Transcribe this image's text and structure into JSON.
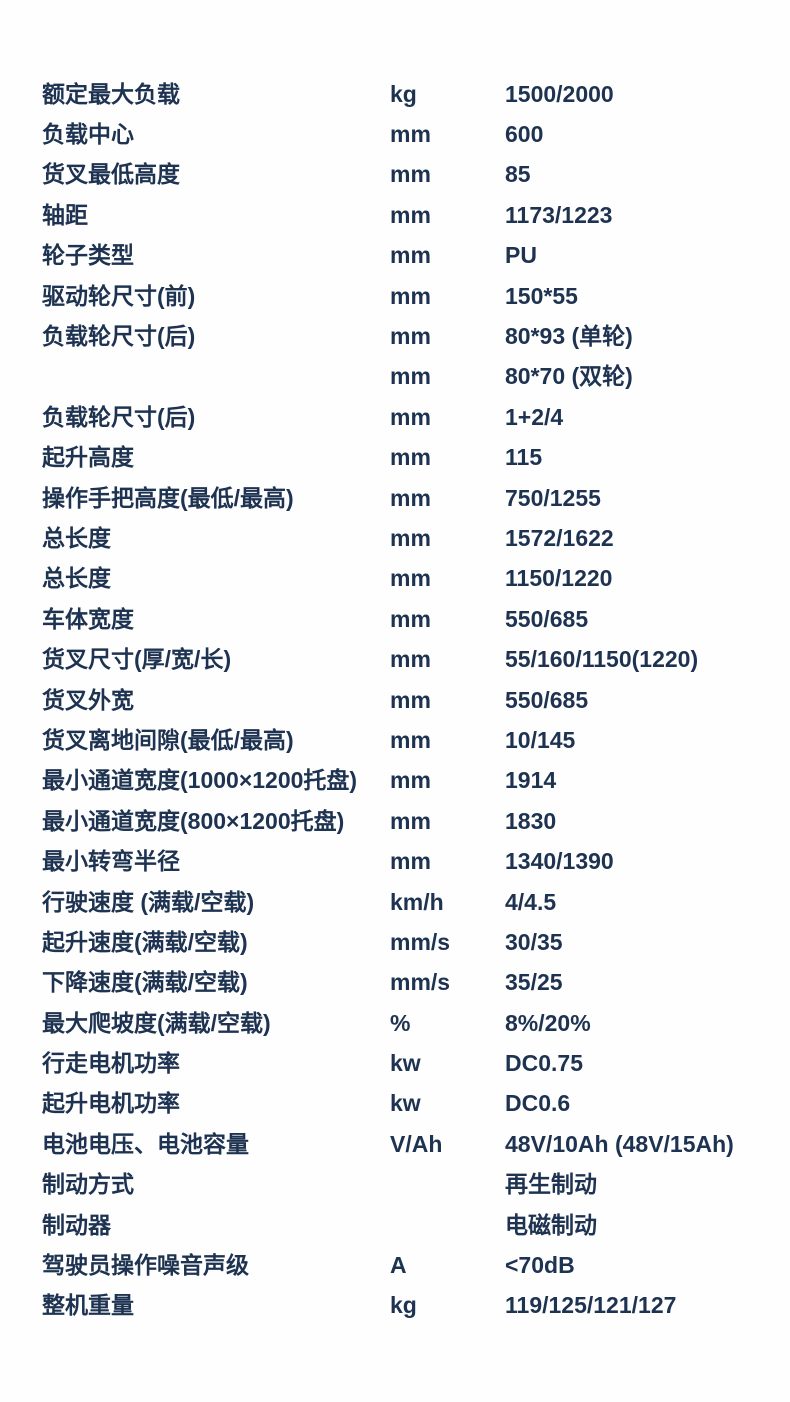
{
  "page": {
    "background_color": "#fefefe",
    "text_color": "#1e3351"
  },
  "spec_table": {
    "rows": [
      {
        "label": "额定最大负载",
        "unit": "kg",
        "value": "1500/2000"
      },
      {
        "label": "负载中心",
        "unit": "mm",
        "value": "600"
      },
      {
        "label": "货叉最低高度",
        "unit": "mm",
        "value": "85"
      },
      {
        "label": "轴距",
        "unit": "mm",
        "value": "1173/1223"
      },
      {
        "label": "轮子类型",
        "unit": "mm",
        "value": "PU"
      },
      {
        "label": "驱动轮尺寸(前)",
        "unit": "mm",
        "value": "150*55"
      },
      {
        "label": "负载轮尺寸(后)",
        "unit": "mm",
        "value": "80*93 (单轮)"
      },
      {
        "label": "",
        "unit": "mm",
        "value": "80*70 (双轮)"
      },
      {
        "label": "负载轮尺寸(后)",
        "unit": "mm",
        "value": "1+2/4"
      },
      {
        "label": "起升高度",
        "unit": "mm",
        "value": "115"
      },
      {
        "label": "操作手把高度(最低/最高)",
        "unit": "mm",
        "value": "750/1255"
      },
      {
        "label": "总长度",
        "unit": "mm",
        "value": "1572/1622"
      },
      {
        "label": "总长度",
        "unit": "mm",
        "value": "1150/1220"
      },
      {
        "label": "车体宽度",
        "unit": "mm",
        "value": "550/685"
      },
      {
        "label": "货叉尺寸(厚/宽/长)",
        "unit": "mm",
        "value": "55/160/1150(1220)"
      },
      {
        "label": "货叉外宽",
        "unit": "mm",
        "value": "550/685"
      },
      {
        "label": "货叉离地间隙(最低/最高)",
        "unit": "mm",
        "value": "10/145"
      },
      {
        "label": "最小通道宽度(1000×1200托盘)",
        "unit": "mm",
        "value": "1914"
      },
      {
        "label": "最小通道宽度(800×1200托盘)",
        "unit": "mm",
        "value": "1830"
      },
      {
        "label": "最小转弯半径",
        "unit": "mm",
        "value": "1340/1390"
      },
      {
        "label": "行驶速度 (满载/空载)",
        "unit": "km/h",
        "value": "4/4.5"
      },
      {
        "label": "起升速度(满载/空载)",
        "unit": "mm/s",
        "value": "30/35"
      },
      {
        "label": "下降速度(满载/空载)",
        "unit": "mm/s",
        "value": "35/25"
      },
      {
        "label": "最大爬坡度(满载/空载)",
        "unit": "%",
        "value": "8%/20%"
      },
      {
        "label": "行走电机功率",
        "unit": "kw",
        "value": "DC0.75"
      },
      {
        "label": "起升电机功率",
        "unit": "kw",
        "value": "DC0.6"
      },
      {
        "label": "电池电压、电池容量",
        "unit": "V/Ah",
        "value": "48V/10Ah (48V/15Ah)"
      },
      {
        "label": "制动方式",
        "unit": "",
        "value": "再生制动"
      },
      {
        "label": "制动器",
        "unit": "",
        "value": "电磁制动"
      },
      {
        "label": "驾驶员操作噪音声级",
        "unit": "A",
        "value": "<70dB"
      },
      {
        "label": "整机重量",
        "unit": "kg",
        "value": "119/125/121/127"
      }
    ]
  }
}
